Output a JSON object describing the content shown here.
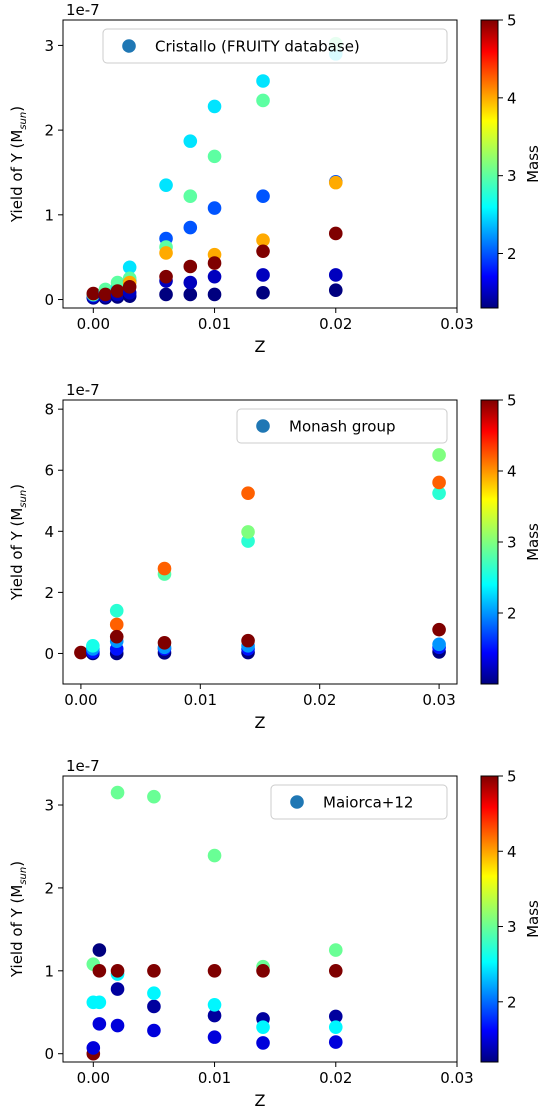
{
  "colormap": "jet",
  "colorbar": {
    "label": "Mass"
  },
  "chart_data": [
    {
      "type": "scatter",
      "title": "",
      "xlabel": "Z",
      "ylabel_main": "Yield of Y (M",
      "ylabel_sub": "sun",
      "ylabel_tail": ")",
      "offset_text": "1e-7",
      "xlim": [
        -0.0025,
        0.03
      ],
      "ylim": [
        -0.1,
        3.3
      ],
      "xticks": [
        0.0,
        0.01,
        0.02,
        0.03
      ],
      "xticklabels": [
        "0.00",
        "0.01",
        "0.02",
        "0.03"
      ],
      "yticks": [
        0,
        1,
        2,
        3
      ],
      "yticklabels": [
        "0",
        "1",
        "2",
        "3"
      ],
      "legend": {
        "label": "Cristallo (FRUITY database)",
        "position": "upper right"
      },
      "color_scale": {
        "min": 1.3,
        "max": 5.0,
        "ticks": [
          2,
          3,
          4,
          5
        ],
        "ticklabels": [
          "2",
          "3",
          "4",
          "5"
        ]
      },
      "points": [
        {
          "z": 0.0,
          "y": 0.02,
          "m": 1.3
        },
        {
          "z": 0.0,
          "y": 0.03,
          "m": 1.5
        },
        {
          "z": 0.0,
          "y": 0.05,
          "m": 2.0
        },
        {
          "z": 0.0,
          "y": 0.06,
          "m": 3.0
        },
        {
          "z": 0.0,
          "y": 0.07,
          "m": 5.0
        },
        {
          "z": 0.001,
          "y": 0.02,
          "m": 1.3
        },
        {
          "z": 0.001,
          "y": 0.04,
          "m": 1.5
        },
        {
          "z": 0.001,
          "y": 0.08,
          "m": 2.0
        },
        {
          "z": 0.001,
          "y": 0.1,
          "m": 2.5
        },
        {
          "z": 0.001,
          "y": 0.12,
          "m": 3.0
        },
        {
          "z": 0.001,
          "y": 0.06,
          "m": 5.0
        },
        {
          "z": 0.002,
          "y": 0.03,
          "m": 1.3
        },
        {
          "z": 0.002,
          "y": 0.06,
          "m": 1.5
        },
        {
          "z": 0.002,
          "y": 0.12,
          "m": 2.0
        },
        {
          "z": 0.002,
          "y": 0.15,
          "m": 2.5
        },
        {
          "z": 0.002,
          "y": 0.2,
          "m": 3.0
        },
        {
          "z": 0.002,
          "y": 0.1,
          "m": 5.0
        },
        {
          "z": 0.003,
          "y": 0.04,
          "m": 1.3
        },
        {
          "z": 0.003,
          "y": 0.08,
          "m": 1.5
        },
        {
          "z": 0.003,
          "y": 0.22,
          "m": 2.0
        },
        {
          "z": 0.003,
          "y": 0.38,
          "m": 2.5
        },
        {
          "z": 0.003,
          "y": 0.25,
          "m": 3.0
        },
        {
          "z": 0.003,
          "y": 0.2,
          "m": 4.0
        },
        {
          "z": 0.003,
          "y": 0.15,
          "m": 5.0
        },
        {
          "z": 0.006,
          "y": 0.06,
          "m": 1.3
        },
        {
          "z": 0.006,
          "y": 0.22,
          "m": 1.5
        },
        {
          "z": 0.006,
          "y": 0.72,
          "m": 2.0
        },
        {
          "z": 0.006,
          "y": 1.35,
          "m": 2.5
        },
        {
          "z": 0.006,
          "y": 0.62,
          "m": 3.0
        },
        {
          "z": 0.006,
          "y": 0.55,
          "m": 4.0
        },
        {
          "z": 0.006,
          "y": 0.27,
          "m": 5.0
        },
        {
          "z": 0.008,
          "y": 0.06,
          "m": 1.3
        },
        {
          "z": 0.008,
          "y": 0.2,
          "m": 1.5
        },
        {
          "z": 0.008,
          "y": 0.85,
          "m": 2.0
        },
        {
          "z": 0.008,
          "y": 1.87,
          "m": 2.5
        },
        {
          "z": 0.008,
          "y": 1.22,
          "m": 3.0
        },
        {
          "z": 0.008,
          "y": 0.39,
          "m": 5.0
        },
        {
          "z": 0.01,
          "y": 0.06,
          "m": 1.3
        },
        {
          "z": 0.01,
          "y": 0.27,
          "m": 1.5
        },
        {
          "z": 0.01,
          "y": 1.08,
          "m": 2.0
        },
        {
          "z": 0.01,
          "y": 2.28,
          "m": 2.5
        },
        {
          "z": 0.01,
          "y": 1.69,
          "m": 3.0
        },
        {
          "z": 0.01,
          "y": 0.53,
          "m": 4.0
        },
        {
          "z": 0.01,
          "y": 0.43,
          "m": 5.0
        },
        {
          "z": 0.014,
          "y": 0.08,
          "m": 1.3
        },
        {
          "z": 0.014,
          "y": 0.29,
          "m": 1.5
        },
        {
          "z": 0.014,
          "y": 1.22,
          "m": 2.0
        },
        {
          "z": 0.014,
          "y": 2.58,
          "m": 2.5
        },
        {
          "z": 0.014,
          "y": 2.35,
          "m": 3.0
        },
        {
          "z": 0.014,
          "y": 0.7,
          "m": 4.0
        },
        {
          "z": 0.014,
          "y": 0.57,
          "m": 5.0
        },
        {
          "z": 0.02,
          "y": 0.11,
          "m": 1.3
        },
        {
          "z": 0.02,
          "y": 0.29,
          "m": 1.5
        },
        {
          "z": 0.02,
          "y": 1.39,
          "m": 2.0
        },
        {
          "z": 0.02,
          "y": 2.9,
          "m": 2.5
        },
        {
          "z": 0.02,
          "y": 3.02,
          "m": 3.0
        },
        {
          "z": 0.02,
          "y": 1.38,
          "m": 4.0
        },
        {
          "z": 0.02,
          "y": 0.78,
          "m": 5.0
        }
      ]
    },
    {
      "type": "scatter",
      "title": "",
      "xlabel": "Z",
      "ylabel_main": "Yield of Y (M",
      "ylabel_sub": "sun",
      "ylabel_tail": ")",
      "offset_text": "1e-7",
      "xlim": [
        -0.0015,
        0.0315
      ],
      "ylim": [
        -1.0,
        8.3
      ],
      "xticks": [
        0.0,
        0.01,
        0.02,
        0.03
      ],
      "xticklabels": [
        "0.00",
        "0.01",
        "0.02",
        "0.03"
      ],
      "yticks": [
        0,
        2,
        4,
        6,
        8
      ],
      "yticklabels": [
        "0",
        "2",
        "4",
        "6",
        "8"
      ],
      "legend": {
        "label": "Monash group",
        "position": "upper right"
      },
      "color_scale": {
        "min": 1.0,
        "max": 5.0,
        "ticks": [
          2,
          3,
          4,
          5
        ],
        "ticklabels": [
          "2",
          "3",
          "4",
          "5"
        ]
      },
      "points": [
        {
          "z": 0.0,
          "y": 0.03,
          "m": 5.0
        },
        {
          "z": 0.001,
          "y": 0.0,
          "m": 1.0
        },
        {
          "z": 0.001,
          "y": 0.05,
          "m": 1.5
        },
        {
          "z": 0.001,
          "y": 0.15,
          "m": 2.0
        },
        {
          "z": 0.001,
          "y": 0.25,
          "m": 2.5
        },
        {
          "z": 0.003,
          "y": 0.0,
          "m": 1.0
        },
        {
          "z": 0.003,
          "y": 0.15,
          "m": 1.5
        },
        {
          "z": 0.003,
          "y": 0.4,
          "m": 2.0
        },
        {
          "z": 0.003,
          "y": 1.4,
          "m": 2.6
        },
        {
          "z": 0.003,
          "y": 0.95,
          "m": 4.2
        },
        {
          "z": 0.003,
          "y": 0.55,
          "m": 5.0
        },
        {
          "z": 0.007,
          "y": 0.02,
          "m": 1.0
        },
        {
          "z": 0.007,
          "y": 0.15,
          "m": 1.5
        },
        {
          "z": 0.007,
          "y": 0.2,
          "m": 2.0
        },
        {
          "z": 0.007,
          "y": 2.6,
          "m": 2.8
        },
        {
          "z": 0.007,
          "y": 2.78,
          "m": 4.2
        },
        {
          "z": 0.007,
          "y": 0.35,
          "m": 5.0
        },
        {
          "z": 0.014,
          "y": 0.03,
          "m": 1.0
        },
        {
          "z": 0.014,
          "y": 0.15,
          "m": 1.5
        },
        {
          "z": 0.014,
          "y": 0.25,
          "m": 2.0
        },
        {
          "z": 0.014,
          "y": 3.68,
          "m": 2.6
        },
        {
          "z": 0.014,
          "y": 3.98,
          "m": 3.0
        },
        {
          "z": 0.014,
          "y": 5.25,
          "m": 4.2
        },
        {
          "z": 0.014,
          "y": 0.42,
          "m": 5.0
        },
        {
          "z": 0.03,
          "y": 0.05,
          "m": 1.0
        },
        {
          "z": 0.03,
          "y": 0.2,
          "m": 1.5
        },
        {
          "z": 0.03,
          "y": 0.3,
          "m": 2.0
        },
        {
          "z": 0.03,
          "y": 5.25,
          "m": 2.6
        },
        {
          "z": 0.03,
          "y": 6.5,
          "m": 3.0
        },
        {
          "z": 0.03,
          "y": 5.6,
          "m": 4.2
        },
        {
          "z": 0.03,
          "y": 0.78,
          "m": 5.0
        }
      ]
    },
    {
      "type": "scatter",
      "title": "",
      "xlabel": "Z",
      "ylabel_main": "Yield of Y (M",
      "ylabel_sub": "sun",
      "ylabel_tail": ")",
      "offset_text": "1e-7",
      "xlim": [
        -0.0025,
        0.03
      ],
      "ylim": [
        -0.1,
        3.35
      ],
      "xticks": [
        0.0,
        0.01,
        0.02,
        0.03
      ],
      "xticklabels": [
        "0.00",
        "0.01",
        "0.02",
        "0.03"
      ],
      "yticks": [
        0,
        1,
        2,
        3
      ],
      "yticklabels": [
        "0",
        "1",
        "2",
        "3"
      ],
      "legend": {
        "label": "Maiorca+12",
        "position": "upper right"
      },
      "color_scale": {
        "min": 1.2,
        "max": 5.0,
        "ticks": [
          2,
          3,
          4,
          5
        ],
        "ticklabels": [
          "2",
          "3",
          "4",
          "5"
        ]
      },
      "points": [
        {
          "z": 0.0,
          "y": 0.0,
          "m": 5.0
        },
        {
          "z": 0.0,
          "y": 0.07,
          "m": 1.5
        },
        {
          "z": 0.0,
          "y": 0.62,
          "m": 2.5
        },
        {
          "z": 0.0,
          "y": 1.08,
          "m": 3.0
        },
        {
          "z": 0.0005,
          "y": 0.36,
          "m": 1.5
        },
        {
          "z": 0.0005,
          "y": 1.25,
          "m": 1.2
        },
        {
          "z": 0.0005,
          "y": 0.62,
          "m": 2.5
        },
        {
          "z": 0.0005,
          "y": 1.0,
          "m": 5.0
        },
        {
          "z": 0.002,
          "y": 0.34,
          "m": 1.5
        },
        {
          "z": 0.002,
          "y": 0.78,
          "m": 1.3
        },
        {
          "z": 0.002,
          "y": 0.96,
          "m": 2.5
        },
        {
          "z": 0.002,
          "y": 1.0,
          "m": 5.0
        },
        {
          "z": 0.002,
          "y": 3.15,
          "m": 3.0
        },
        {
          "z": 0.005,
          "y": 0.28,
          "m": 1.5
        },
        {
          "z": 0.005,
          "y": 0.57,
          "m": 1.3
        },
        {
          "z": 0.005,
          "y": 0.73,
          "m": 2.5
        },
        {
          "z": 0.005,
          "y": 1.0,
          "m": 5.0
        },
        {
          "z": 0.005,
          "y": 3.1,
          "m": 3.0
        },
        {
          "z": 0.01,
          "y": 0.2,
          "m": 1.5
        },
        {
          "z": 0.01,
          "y": 0.46,
          "m": 1.3
        },
        {
          "z": 0.01,
          "y": 0.59,
          "m": 2.5
        },
        {
          "z": 0.01,
          "y": 1.0,
          "m": 5.0
        },
        {
          "z": 0.01,
          "y": 2.39,
          "m": 3.0
        },
        {
          "z": 0.014,
          "y": 0.13,
          "m": 1.5
        },
        {
          "z": 0.014,
          "y": 0.42,
          "m": 1.3
        },
        {
          "z": 0.014,
          "y": 0.32,
          "m": 2.5
        },
        {
          "z": 0.014,
          "y": 1.05,
          "m": 3.0
        },
        {
          "z": 0.014,
          "y": 1.0,
          "m": 5.0
        },
        {
          "z": 0.02,
          "y": 0.14,
          "m": 1.5
        },
        {
          "z": 0.02,
          "y": 0.45,
          "m": 1.3
        },
        {
          "z": 0.02,
          "y": 0.32,
          "m": 2.5
        },
        {
          "z": 0.02,
          "y": 1.25,
          "m": 3.0
        },
        {
          "z": 0.02,
          "y": 1.0,
          "m": 5.0
        }
      ]
    }
  ]
}
